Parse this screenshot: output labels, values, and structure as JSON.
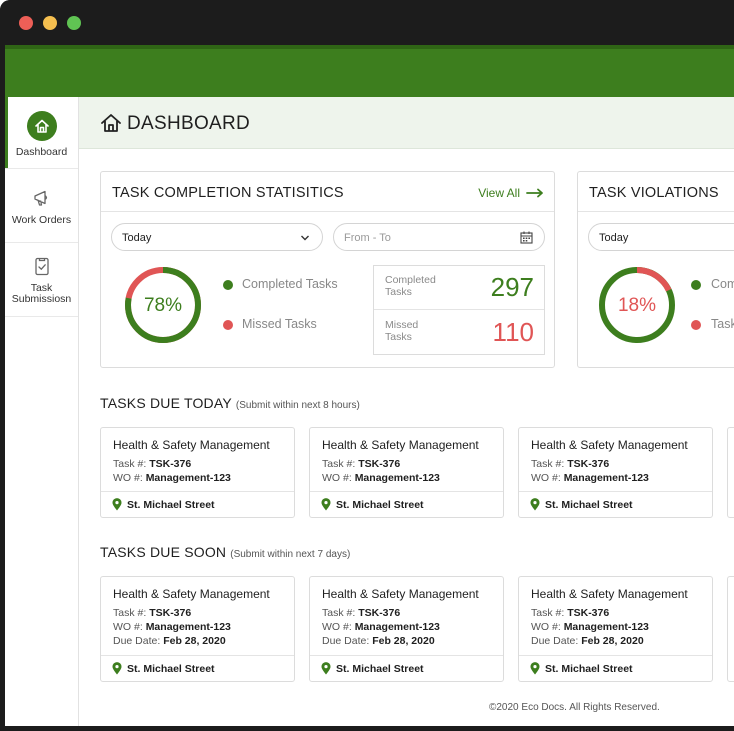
{
  "app": {
    "brand_color": "#3d7e1e",
    "missed_color": "#e05555"
  },
  "sidebar": {
    "items": [
      {
        "label": "Dashboard",
        "icon": "home-icon",
        "active": true
      },
      {
        "label": "Work Orders",
        "icon": "megaphone-icon",
        "active": false
      },
      {
        "label": "Task Submissiosn",
        "icon": "clipboard-check-icon",
        "active": false
      }
    ]
  },
  "header": {
    "title": "DASHBOARD"
  },
  "completion": {
    "title": "TASK COMPLETION STATISITICS",
    "view_all": "View All",
    "period_select": "Today",
    "date_range_placeholder": "From - To",
    "percent_label": "78%",
    "percent_value": 0.78,
    "legend_completed": "Completed Tasks",
    "legend_missed": "Missed Tasks",
    "completed_label": "Completed Tasks",
    "completed_value": "297",
    "missed_label": "Missed Tasks",
    "missed_value": "110"
  },
  "violations": {
    "title": "TASK VIOLATIONS",
    "period_select": "Today",
    "percent_label": "18%",
    "percent_value": 0.18,
    "legend_completed": "Com",
    "legend_missed": "Task"
  },
  "due_today": {
    "title": "TASKS DUE TODAY",
    "subtitle": "(Submit within next 8 hours)",
    "cards": [
      {
        "title": "Health & Safety Management",
        "task_prefix": "Task #:",
        "task": "TSK-376",
        "wo_prefix": "WO #:",
        "wo": "Management-123",
        "location": "St. Michael Street"
      },
      {
        "title": "Health & Safety Management",
        "task_prefix": "Task #:",
        "task": "TSK-376",
        "wo_prefix": "WO #:",
        "wo": "Management-123",
        "location": "St. Michael Street"
      },
      {
        "title": "Health & Safety Management",
        "task_prefix": "Task #:",
        "task": "TSK-376",
        "wo_prefix": "WO #:",
        "wo": "Management-123",
        "location": "St. Michael Street"
      }
    ]
  },
  "due_soon": {
    "title": "TASKS DUE SOON",
    "subtitle": "(Submit within next 7 days)",
    "cards": [
      {
        "title": "Health & Safety Management",
        "task_prefix": "Task #:",
        "task": "TSK-376",
        "wo_prefix": "WO #:",
        "wo": "Management-123",
        "due_prefix": "Due Date:",
        "due": "Feb 28, 2020",
        "location": "St. Michael Street"
      },
      {
        "title": "Health & Safety Management",
        "task_prefix": "Task #:",
        "task": "TSK-376",
        "wo_prefix": "WO #:",
        "wo": "Management-123",
        "due_prefix": "Due Date:",
        "due": "Feb 28, 2020",
        "location": "St. Michael Street"
      },
      {
        "title": "Health & Safety Management",
        "task_prefix": "Task #:",
        "task": "TSK-376",
        "wo_prefix": "WO #:",
        "wo": "Management-123",
        "due_prefix": "Due Date:",
        "due": "Feb 28, 2020",
        "location": "St. Michael Street"
      }
    ]
  },
  "footer": {
    "copyright": "©2020 Eco Docs. All Rights Reserved."
  }
}
